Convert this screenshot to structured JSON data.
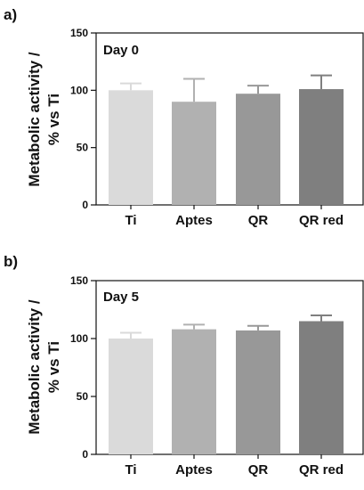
{
  "chart_data": [
    {
      "type": "bar",
      "panel_label": "a)",
      "title": "Day 0",
      "ylabel_line1": "Metabolic activity /",
      "ylabel_line2": "% vs Ti",
      "categories": [
        "Ti",
        "Aptes",
        "QR",
        "QR red"
      ],
      "values": [
        100,
        90,
        97,
        101
      ],
      "errors": [
        6,
        20,
        7,
        12
      ],
      "ylim": [
        0,
        150
      ],
      "yticks": [
        "0",
        "50",
        "100",
        "150"
      ],
      "colors": [
        "#dadada",
        "#b1b1b1",
        "#989898",
        "#7f7f7f"
      ],
      "grid": false,
      "legend": "none"
    },
    {
      "type": "bar",
      "panel_label": "b)",
      "title": "Day 5",
      "ylabel_line1": "Metabolic activity /",
      "ylabel_line2": "% vs Ti",
      "categories": [
        "Ti",
        "Aptes",
        "QR",
        "QR red"
      ],
      "values": [
        100,
        108,
        107,
        115
      ],
      "errors": [
        5,
        4,
        4,
        5
      ],
      "ylim": [
        0,
        150
      ],
      "yticks": [
        "0",
        "50",
        "100",
        "150"
      ],
      "colors": [
        "#dadada",
        "#b1b1b1",
        "#989898",
        "#7f7f7f"
      ],
      "grid": false,
      "legend": "none"
    }
  ]
}
